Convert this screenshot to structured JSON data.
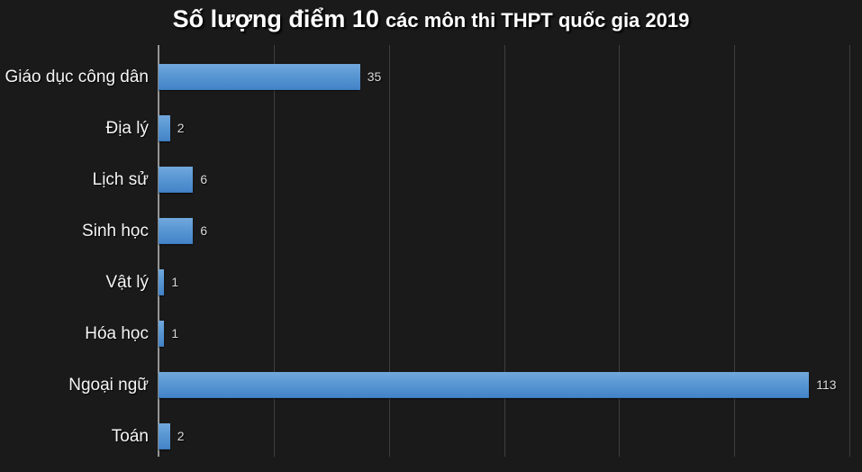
{
  "title": {
    "main": "Số lượng điểm 10",
    "sub": "các môn thi THPT quốc gia 2019"
  },
  "chart_data": {
    "type": "bar",
    "orientation": "horizontal",
    "title": "Số lượng điểm 10 các môn thi THPT quốc gia 2019",
    "categories": [
      "Giáo dục công dân",
      "Địa lý",
      "Lịch sử",
      "Sinh học",
      "Vật lý",
      "Hóa học",
      "Ngoại ngữ",
      "Toán"
    ],
    "values": [
      35,
      2,
      6,
      6,
      1,
      1,
      113,
      2
    ],
    "data_labels": [
      35,
      2,
      6,
      6,
      1,
      1,
      113,
      2
    ],
    "xlabel": "",
    "ylabel": "",
    "xlim": [
      0,
      120
    ],
    "gridline_step": 20,
    "grid": true,
    "legend": false
  },
  "colors": {
    "background": "#1a1a1a",
    "bar_top": "#72a8dd",
    "bar_bottom": "#4484c8",
    "axis": "#969696",
    "gridline": "#3e3e3e",
    "category_label": "#f5f5f5",
    "value_label": "#d9d9d9",
    "title": "#ffffff"
  }
}
